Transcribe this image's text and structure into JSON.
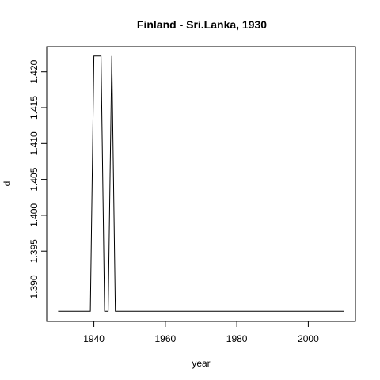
{
  "chart_data": {
    "type": "line",
    "title": "Finland - Sri.Lanka, 1930",
    "xlabel": "year",
    "ylabel": "d",
    "xlim": [
      1926.8,
      2013.2
    ],
    "ylim": [
      1.3852,
      1.4235
    ],
    "xticks": [
      1940,
      1960,
      1980,
      2000
    ],
    "yticks": [
      1.39,
      1.395,
      1.4,
      1.405,
      1.41,
      1.415,
      1.42
    ],
    "ytick_labels": [
      "1.390",
      "1.395",
      "1.400",
      "1.405",
      "1.410",
      "1.415",
      "1.420"
    ],
    "grid": false,
    "series": [
      {
        "x": [
          1930,
          1939,
          1940,
          1942,
          1943,
          1944,
          1945,
          1946,
          1947,
          2010
        ],
        "y": [
          1.3866,
          1.3866,
          1.4222,
          1.4222,
          1.3866,
          1.3866,
          1.4222,
          1.3866,
          1.3866,
          1.3866
        ]
      }
    ]
  }
}
